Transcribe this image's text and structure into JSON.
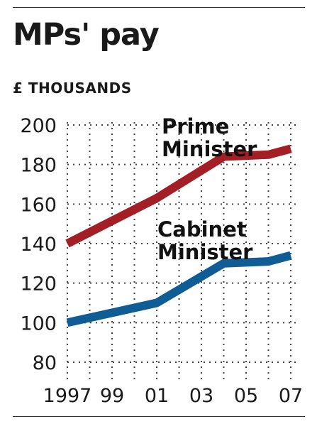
{
  "header": {
    "title": "MPs' pay",
    "units": "£ THOUSANDS"
  },
  "chart_data": {
    "type": "line",
    "title": "MPs' pay",
    "ylabel": "£ THOUSANDS",
    "ylim": [
      80,
      200
    ],
    "yticks": [
      "80",
      "100",
      "120",
      "140",
      "160",
      "180",
      "200"
    ],
    "xticks": [
      "1997",
      "99",
      "01",
      "03",
      "05",
      "07"
    ],
    "grid": true,
    "series": [
      {
        "name": "Prime Minister",
        "color": "#a41e25",
        "x": [
          1997,
          2001,
          2004,
          2006,
          2007
        ],
        "values": [
          140,
          163,
          184,
          185,
          188
        ]
      },
      {
        "name": "Cabinet Minister",
        "color": "#0f5d94",
        "x": [
          1997,
          2001,
          2004,
          2006,
          2007
        ],
        "values": [
          100,
          110,
          130,
          131,
          134
        ]
      }
    ]
  }
}
